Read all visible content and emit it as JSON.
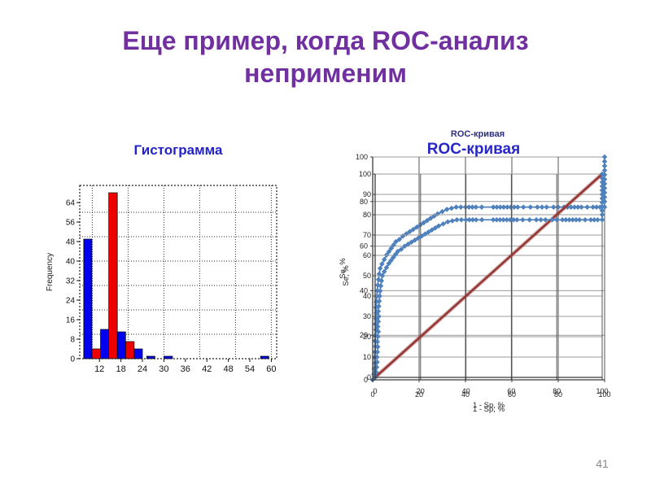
{
  "slide": {
    "title_line1": "Еще пример, когда ROC-анализ",
    "title_line2": "неприменим",
    "title_color": "#7030A0",
    "page_number": "41"
  },
  "chart_data": [
    {
      "type": "bar",
      "title": "Гистограмма",
      "title_color": "#2323CB",
      "xlabel": "",
      "ylabel": "Frequency",
      "xlim": [
        6.5,
        61.5
      ],
      "ylim": [
        0,
        71
      ],
      "x_ticks": [
        12,
        18,
        24,
        30,
        36,
        42,
        48,
        54,
        60
      ],
      "y_ticks": [
        0,
        8,
        16,
        24,
        32,
        40,
        48,
        56,
        64
      ],
      "x_gridlines": [
        10,
        20,
        30,
        40,
        50,
        60
      ],
      "y_gridlines": [
        10,
        20,
        30,
        40,
        50,
        60
      ],
      "grid": "dotted",
      "series_colors": {
        "blue": "#0000EE",
        "red": "#EE0000"
      },
      "bars": [
        {
          "x0": 7.6,
          "x1": 9.9,
          "h": 49,
          "series": "blue"
        },
        {
          "x0": 9.9,
          "x1": 12.3,
          "h": 4,
          "series": "red"
        },
        {
          "x0": 12.3,
          "x1": 14.6,
          "h": 12,
          "series": "blue"
        },
        {
          "x0": 14.6,
          "x1": 17.0,
          "h": 68,
          "series": "red"
        },
        {
          "x0": 17.0,
          "x1": 19.3,
          "h": 11,
          "series": "blue"
        },
        {
          "x0": 19.3,
          "x1": 21.7,
          "h": 7,
          "series": "red"
        },
        {
          "x0": 21.7,
          "x1": 24.0,
          "h": 4,
          "series": "blue"
        },
        {
          "x0": 25.2,
          "x1": 27.5,
          "h": 1,
          "series": "blue"
        },
        {
          "x0": 30.0,
          "x1": 32.4,
          "h": 1,
          "series": "blue"
        },
        {
          "x0": 57.0,
          "x1": 59.3,
          "h": 1,
          "series": "blue"
        }
      ]
    },
    {
      "type": "line",
      "title": "ROC-кривая",
      "title_small": "ROC-кривая",
      "title_color": "#2727C8",
      "title_small_color": "#2E2E7E",
      "note": "two identical ROC charts are superimposed with a small offset (ghosted double image)",
      "xlabel": "1 - Sp, %",
      "ylabel": "Se, %",
      "xlim": [
        0,
        100
      ],
      "ylim": [
        0,
        100
      ],
      "x_ticks": [
        0,
        20,
        40,
        60,
        80,
        100
      ],
      "y_ticks_front": [
        0,
        10,
        20,
        30,
        40,
        50,
        60,
        70,
        80,
        90,
        100
      ],
      "y_ticks_back": [
        0,
        20,
        40,
        60,
        80,
        100
      ],
      "legend": "none",
      "curve_color": "#4F81BD",
      "diagonal_color": "#953735",
      "diagonal": [
        [
          0,
          0
        ],
        [
          100,
          100
        ]
      ],
      "curve": [
        [
          0,
          0
        ],
        [
          0.5,
          2.5
        ],
        [
          0.7,
          5
        ],
        [
          0.9,
          7.5
        ],
        [
          0.8,
          10
        ],
        [
          1.0,
          12.5
        ],
        [
          1.2,
          15
        ],
        [
          1.0,
          17.5
        ],
        [
          1.2,
          20
        ],
        [
          1.4,
          22.5
        ],
        [
          1.2,
          25
        ],
        [
          1.4,
          27.5
        ],
        [
          1.6,
          30
        ],
        [
          1.4,
          32.5
        ],
        [
          1.6,
          35
        ],
        [
          1.8,
          37.5
        ],
        [
          2.0,
          40
        ],
        [
          2.2,
          42.5
        ],
        [
          2.5,
          45
        ],
        [
          2.8,
          47.5
        ],
        [
          3.2,
          50
        ],
        [
          4,
          52
        ],
        [
          5,
          54
        ],
        [
          6,
          56
        ],
        [
          7,
          57.5
        ],
        [
          8,
          59
        ],
        [
          9,
          60.5
        ],
        [
          10,
          62
        ],
        [
          11.5,
          63
        ],
        [
          13,
          64.5
        ],
        [
          14.5,
          65.5
        ],
        [
          16,
          66.5
        ],
        [
          17.5,
          67.5
        ],
        [
          19,
          68.5
        ],
        [
          20.5,
          69.5
        ],
        [
          22,
          70.5
        ],
        [
          23.5,
          71.5
        ],
        [
          25,
          72.5
        ],
        [
          26.5,
          73.5
        ],
        [
          28,
          74.5
        ],
        [
          30,
          75.5
        ],
        [
          32,
          76.5
        ],
        [
          34,
          77
        ],
        [
          36,
          77.5
        ],
        [
          38,
          77.5
        ],
        [
          40,
          77.5
        ],
        [
          41.5,
          77.5
        ],
        [
          43,
          77.5
        ],
        [
          44.5,
          77.5
        ],
        [
          47,
          77.5
        ],
        [
          52,
          77.5
        ],
        [
          53.5,
          77.5
        ],
        [
          55,
          77.5
        ],
        [
          56.5,
          77.5
        ],
        [
          58,
          77.5
        ],
        [
          59.5,
          77.5
        ],
        [
          61,
          77.5
        ],
        [
          62.5,
          77.5
        ],
        [
          65,
          77.5
        ],
        [
          68,
          77.5
        ],
        [
          71,
          77.5
        ],
        [
          73,
          77.5
        ],
        [
          75,
          77.5
        ],
        [
          78,
          77.5
        ],
        [
          80,
          77.5
        ],
        [
          82.5,
          77.5
        ],
        [
          84,
          77.5
        ],
        [
          85.5,
          77.5
        ],
        [
          87,
          77.5
        ],
        [
          88.5,
          77.5
        ],
        [
          90,
          77.5
        ],
        [
          92.5,
          77.5
        ],
        [
          95,
          77.5
        ],
        [
          96.5,
          77.5
        ],
        [
          98,
          77.5
        ],
        [
          100,
          77.5
        ],
        [
          100,
          80
        ],
        [
          100,
          82
        ],
        [
          100,
          84
        ],
        [
          100,
          86
        ],
        [
          100,
          88
        ],
        [
          100,
          90
        ],
        [
          100,
          92
        ],
        [
          100,
          94
        ],
        [
          100,
          96
        ],
        [
          100,
          98
        ],
        [
          100,
          100
        ]
      ]
    }
  ]
}
